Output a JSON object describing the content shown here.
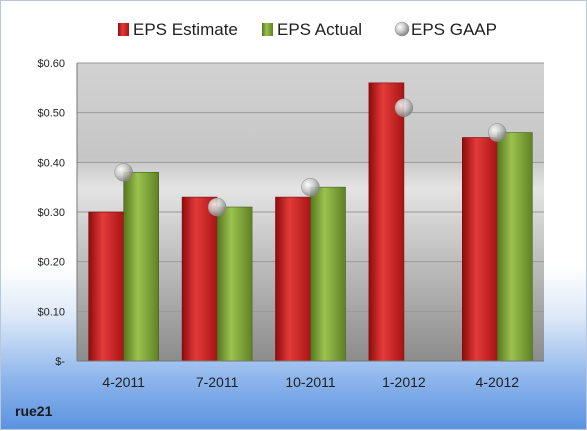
{
  "company": "rue21",
  "chart_data": {
    "type": "bar",
    "title": "",
    "xlabel": "",
    "ylabel": "",
    "categories": [
      "4-2011",
      "7-2011",
      "10-2011",
      "1-2012",
      "4-2012"
    ],
    "series": [
      {
        "name": "EPS Estimate",
        "kind": "bar",
        "color": "#cc1f1f",
        "values": [
          0.3,
          0.33,
          0.33,
          0.56,
          0.45
        ]
      },
      {
        "name": "EPS Actual",
        "kind": "bar",
        "color": "#7ea33a",
        "values": [
          0.38,
          0.31,
          0.35,
          null,
          0.46
        ]
      },
      {
        "name": "EPS GAAP",
        "kind": "marker",
        "color": "#b8b8b8",
        "values": [
          0.38,
          0.31,
          0.35,
          0.51,
          0.46
        ]
      }
    ],
    "yticks": [
      0,
      0.1,
      0.2,
      0.3,
      0.4,
      0.5,
      0.6
    ],
    "ytick_labels": [
      "$-",
      "$0.10",
      "$0.20",
      "$0.30",
      "$0.40",
      "$0.50",
      "$0.60"
    ],
    "ylim": [
      0,
      0.6
    ],
    "grid": true,
    "legend_position": "top"
  }
}
